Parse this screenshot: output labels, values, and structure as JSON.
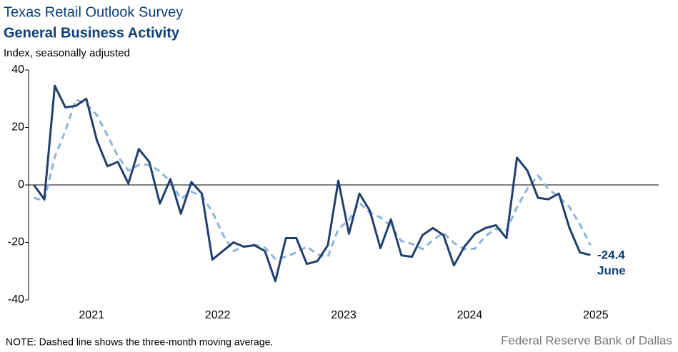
{
  "chart_data": {
    "type": "line",
    "title": "Texas Retail Outlook Survey",
    "subtitle": "General Business Activity",
    "y_axis_label": "Index, seasonally adjusted",
    "note": "NOTE: Dashed line shows the three-month  moving average.",
    "source": "Federal Reserve Bank of Dallas",
    "annotations": [
      "-24.4",
      "June"
    ],
    "x": [
      2021.042,
      2021.125,
      2021.208,
      2021.292,
      2021.375,
      2021.458,
      2021.542,
      2021.625,
      2021.708,
      2021.792,
      2021.875,
      2021.958,
      2022.042,
      2022.125,
      2022.208,
      2022.292,
      2022.375,
      2022.458,
      2022.542,
      2022.625,
      2022.708,
      2022.792,
      2022.875,
      2022.958,
      2023.042,
      2023.125,
      2023.208,
      2023.292,
      2023.375,
      2023.458,
      2023.542,
      2023.625,
      2023.708,
      2023.792,
      2023.875,
      2023.958,
      2024.042,
      2024.125,
      2024.208,
      2024.292,
      2024.375,
      2024.458,
      2024.542,
      2024.625,
      2024.708,
      2024.792,
      2024.875,
      2024.958,
      2025.042,
      2025.125,
      2025.208,
      2025.292,
      2025.375,
      2025.458
    ],
    "series": [
      {
        "name": "General Business Activity",
        "color": "#1f3f6e",
        "dashed": false,
        "values": [
          0,
          -5,
          34.5,
          27,
          27.5,
          30,
          15.5,
          6.5,
          8,
          0.5,
          12.5,
          8,
          -6.5,
          2,
          -10,
          1,
          -3,
          -26,
          -23,
          -20,
          -21.5,
          -21,
          -23,
          -33.5,
          -18.5,
          -18.5,
          -27.5,
          -26.5,
          -21,
          1.5,
          -17,
          -3,
          -9,
          -22,
          -12,
          -24.5,
          -25,
          -17.5,
          -15,
          -17.5,
          -28,
          -21.5,
          -17,
          -15,
          -14,
          -18.5,
          9.5,
          5,
          -4.5,
          -5,
          -3,
          -15,
          -23.5,
          -24.4
        ]
      },
      {
        "name": "Three-month moving average",
        "color": "#8fb3dc",
        "dashed": true,
        "values": [
          -4.5,
          -5.5,
          9.8,
          18.8,
          29.7,
          28.2,
          24.3,
          17.3,
          10,
          5,
          7,
          7,
          4.7,
          1.2,
          -4.8,
          -2.3,
          -4,
          -9.3,
          -17.3,
          -23,
          -21.5,
          -20.8,
          -21.8,
          -25.8,
          -25,
          -23.5,
          -21.5,
          -24.2,
          -25,
          -15.3,
          -12.2,
          -6.2,
          -9.7,
          -11.3,
          -14.3,
          -19.5,
          -20.5,
          -22.3,
          -19.2,
          -16.7,
          -20.2,
          -22.3,
          -22.2,
          -17.8,
          -15.3,
          -15.8,
          -7.7,
          -1.3,
          3.3,
          -1.5,
          -4.2,
          -7.7,
          -13.8,
          -21
        ]
      }
    ],
    "xlim": [
      2021,
      2026
    ],
    "xticks": [
      {
        "value": 2021.5,
        "label": "2021"
      },
      {
        "value": 2022.5,
        "label": "2022"
      },
      {
        "value": 2023.5,
        "label": "2023"
      },
      {
        "value": 2024.5,
        "label": "2024"
      },
      {
        "value": 2025.5,
        "label": "2025"
      }
    ],
    "ylim": [
      -40,
      40
    ],
    "yticks": [
      -40,
      -20,
      0,
      20,
      40
    ],
    "grid": false
  }
}
